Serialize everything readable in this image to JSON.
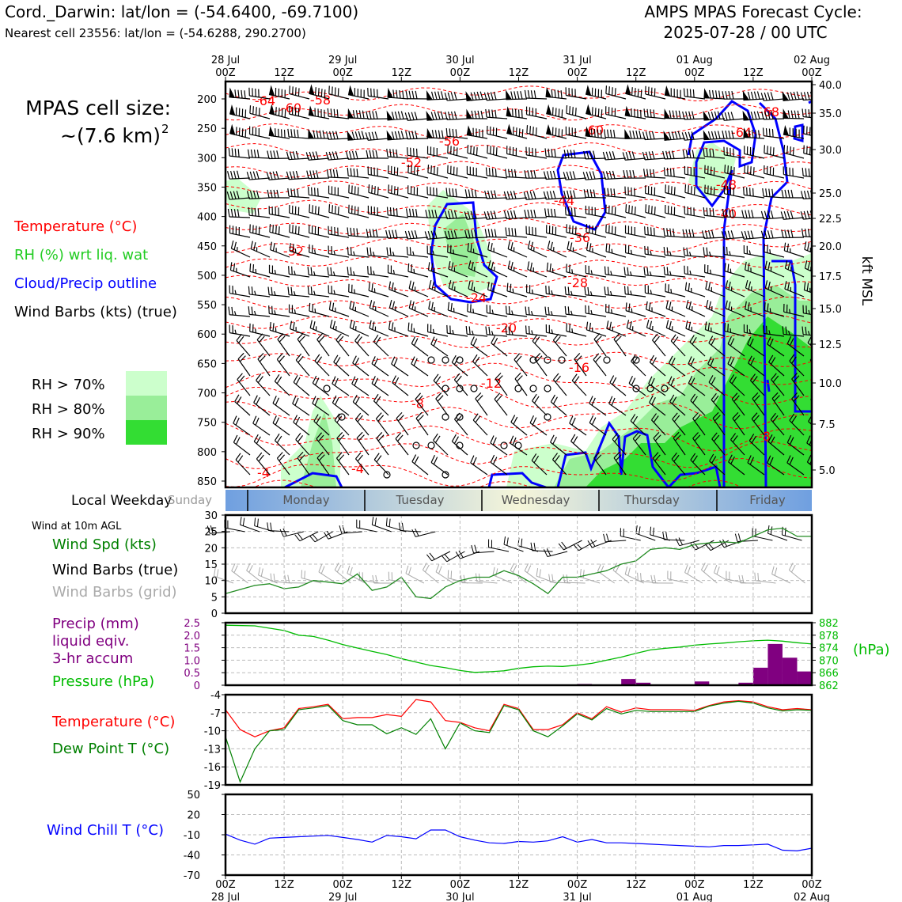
{
  "header": {
    "title_left": "Cord._Darwin: lat/lon = (-54.6400, -69.7100)",
    "subtitle_left": "Nearest cell 23556: lat/lon = (-54.6288, 290.2700)",
    "title_right_1": "AMPS MPAS Forecast Cycle:",
    "title_right_2": "2025-07-28 / 00 UTC"
  },
  "side": {
    "cell_size_1": "MPAS cell size:",
    "cell_size_2": "~(7.6 km)",
    "cell_size_sup": "2",
    "legend_temp": "Temperature (°C)",
    "legend_rh": "RH (%) wrt liq. wat",
    "legend_cloud": "Cloud/Precip outline",
    "legend_wind": "Wind Barbs (kts) (true)",
    "rh70": "RH > 70%",
    "rh80": "RH > 80%",
    "rh90": "RH > 90%",
    "weekday_label": "Local Weekday",
    "wind10m_label": "Wind at 10m AGL",
    "wspd_label": "Wind Spd (kts)",
    "wbarb_true_label": "Wind Barbs (true)",
    "wbarb_grid_label": "Wind Barbs (grid)",
    "precip_label_1": "Precip (mm)",
    "precip_label_2": "liquid eqiv.",
    "precip_label_3": "3-hr accum",
    "pressure_label": "Pressure (hPa)",
    "hpa_label": "(hPa)",
    "temp_label": "Temperature (°C)",
    "dew_label": "Dew Point T (°C)",
    "windchill_label": "Wind Chill T (°C)",
    "kft_label": "kft MSL"
  },
  "colors": {
    "temp": "#ff0000",
    "rh_text": "#22cc22",
    "cloud": "#0000ff",
    "rh70": "#ccffcc",
    "rh80": "#99ee99",
    "rh90": "#33dd33",
    "wind_speed": "#228b22",
    "precip": "#800080",
    "pressure": "#00bb00",
    "dewpoint": "#008000",
    "windchill": "#0000ff",
    "grid_barb": "#aaaaaa"
  },
  "chart_data": [
    {
      "type": "time-height",
      "name": "upper-air",
      "y_left_ticks": [
        200,
        250,
        300,
        350,
        400,
        450,
        500,
        550,
        600,
        650,
        700,
        750,
        800,
        850
      ],
      "y_right_ticks": [
        "40.0",
        "35.0",
        "30.0",
        "25.0",
        "22.5",
        "20.0",
        "17.5",
        "15.0",
        "12.5",
        "10.0",
        "7.5",
        "5.0"
      ],
      "top_x_ticks": [
        [
          "28 Jul",
          "00Z"
        ],
        [
          "",
          "12Z"
        ],
        [
          "29 Jul",
          "00Z"
        ],
        [
          "",
          "12Z"
        ],
        [
          "30 Jul",
          "00Z"
        ],
        [
          "",
          "12Z"
        ],
        [
          "31 Jul",
          "00Z"
        ],
        [
          "",
          "12Z"
        ],
        [
          "01 Aug",
          "00Z"
        ],
        [
          "",
          "12Z"
        ],
        [
          "02 Aug",
          "00Z"
        ]
      ],
      "temp_contour_labels": [
        "-64",
        "-60",
        "-58",
        "-56",
        "-52",
        "-60",
        "-68",
        "-64",
        "-48",
        "-40",
        "-44",
        "-36",
        "-32",
        "-28",
        "-24",
        "-20",
        "-16",
        "-12",
        "-8",
        "-4",
        "-4",
        "-8"
      ]
    },
    {
      "type": "bar",
      "name": "weekday",
      "categories": [
        "Sunday",
        "Monday",
        "Tuesday",
        "Wednesday",
        "Thursday",
        "Friday"
      ]
    },
    {
      "type": "line",
      "name": "wind-10m",
      "ylim": [
        0,
        30
      ],
      "yticks": [
        0,
        5,
        10,
        15,
        20,
        25,
        30
      ],
      "x_hours": [
        0,
        6,
        9,
        12,
        15,
        18,
        21,
        24,
        27,
        30,
        33,
        36,
        39,
        42,
        45,
        48,
        51,
        54,
        57,
        60,
        63,
        66,
        69,
        72,
        75,
        78,
        81,
        84,
        87,
        90,
        93,
        96,
        99,
        102,
        105,
        108,
        111,
        114,
        117,
        120
      ],
      "values": [
        6,
        8.5,
        9,
        7.5,
        8,
        10,
        9.5,
        9,
        12,
        7,
        8,
        11,
        5,
        4.5,
        8,
        10,
        11,
        11,
        13,
        11.5,
        9,
        6,
        11,
        11,
        12,
        13,
        15,
        16,
        19.5,
        20,
        19.5,
        21,
        21.5,
        21.8,
        21.5,
        23.5,
        25.5,
        26,
        23.5,
        23.5
      ]
    },
    {
      "type": "bar+line",
      "name": "precip-pressure",
      "precip_ylim": [
        0,
        2.5
      ],
      "precip_yticks": [
        "0",
        "0.5",
        "1.0",
        "1.5",
        "2.0",
        "2.5"
      ],
      "pressure_ylim": [
        862,
        882
      ],
      "pressure_yticks": [
        862,
        866,
        870,
        874,
        878,
        882
      ],
      "precip_x_start_hours": [
        72,
        81,
        84,
        96,
        105,
        108,
        111,
        114,
        117
      ],
      "precip_values": [
        0.05,
        0.25,
        0.1,
        0.15,
        0.1,
        0.7,
        1.65,
        1.1,
        0.55
      ],
      "pressure_x_hours": [
        0,
        6,
        12,
        15,
        18,
        21,
        24,
        27,
        30,
        33,
        36,
        39,
        42,
        45,
        48,
        51,
        54,
        57,
        60,
        63,
        66,
        69,
        72,
        75,
        78,
        81,
        84,
        87,
        90,
        93,
        96,
        99,
        102,
        105,
        108,
        111,
        114,
        117,
        120
      ],
      "pressure_values": [
        881.2,
        881,
        879.5,
        878,
        877.6,
        876.4,
        875,
        873.9,
        872.8,
        871.8,
        870.5,
        869.4,
        868.3,
        867.6,
        866.7,
        866.1,
        866.3,
        866.6,
        867.4,
        867.9,
        868.1,
        868,
        868.4,
        869,
        870,
        871,
        872.2,
        873.3,
        873.8,
        874.2,
        874.8,
        875.2,
        875.5,
        875.9,
        876.2,
        876.4,
        876.1,
        875.6,
        875.2
      ]
    },
    {
      "type": "line",
      "name": "temp-dewpoint",
      "ylim": [
        -19,
        -4
      ],
      "yticks": [
        -4,
        -7,
        -10,
        -13,
        -16,
        -19
      ],
      "x_hours": [
        0,
        3,
        6,
        9,
        12,
        15,
        18,
        21,
        24,
        27,
        30,
        33,
        36,
        39,
        42,
        45,
        48,
        51,
        54,
        57,
        60,
        63,
        66,
        69,
        72,
        75,
        78,
        81,
        84,
        87,
        90,
        93,
        96,
        99,
        102,
        105,
        108,
        111,
        114,
        117,
        120
      ],
      "series": [
        {
          "name": "Temperature (°C)",
          "values": [
            -6.5,
            -9.8,
            -11,
            -10,
            -9.5,
            -6.3,
            -6,
            -5.6,
            -8,
            -7.8,
            -7.8,
            -7.3,
            -7.6,
            -4.8,
            -5.2,
            -8.3,
            -8.6,
            -9.5,
            -10,
            -5.6,
            -6.3,
            -9.8,
            -9.8,
            -9,
            -7,
            -8,
            -6,
            -6.9,
            -6.2,
            -6.5,
            -6.5,
            -6.5,
            -6.6,
            -5.8,
            -5.2,
            -5,
            -5.2,
            -6,
            -6.5,
            -6.3,
            -6.5
          ]
        },
        {
          "name": "Dew Point T (°C)",
          "values": [
            -11,
            -18.5,
            -13,
            -10,
            -9.8,
            -6.5,
            -6.2,
            -5.8,
            -8.3,
            -9,
            -9,
            -10.5,
            -9.5,
            -10.6,
            -8,
            -13,
            -8.7,
            -10,
            -10.3,
            -5.8,
            -6.5,
            -10,
            -11,
            -9.2,
            -7.2,
            -8.2,
            -6.3,
            -7.2,
            -6.6,
            -6.8,
            -6.8,
            -6.8,
            -6.8,
            -5.9,
            -5.4,
            -5.1,
            -5.4,
            -6.2,
            -6.7,
            -6.5,
            -6.6
          ]
        }
      ]
    },
    {
      "type": "line",
      "name": "wind-chill",
      "ylim": [
        -70,
        50
      ],
      "yticks": [
        50,
        20,
        -10,
        -40,
        -70
      ],
      "x_hours": [
        0,
        3,
        6,
        9,
        12,
        15,
        18,
        21,
        24,
        27,
        30,
        33,
        36,
        39,
        42,
        45,
        48,
        51,
        54,
        57,
        60,
        63,
        66,
        69,
        72,
        75,
        78,
        81,
        84,
        87,
        90,
        93,
        96,
        99,
        102,
        105,
        108,
        111,
        114,
        117,
        120
      ],
      "values": [
        -9,
        -18,
        -24,
        -15,
        -14,
        -13,
        -12,
        -11,
        -14,
        -17,
        -21,
        -11,
        -13,
        -16,
        -3,
        -3,
        -13,
        -18,
        -22,
        -23,
        -20,
        -21,
        -19,
        -13,
        -21,
        -17,
        -22,
        -22,
        -23,
        -24,
        -25,
        -26,
        -27,
        -28,
        -26,
        -26,
        -25,
        -24,
        -33,
        -34,
        -30
      ]
    }
  ],
  "bottom_x_ticks": [
    [
      "00Z",
      "28 Jul"
    ],
    [
      "12Z",
      ""
    ],
    [
      "00Z",
      "29 Jul"
    ],
    [
      "12Z",
      ""
    ],
    [
      "00Z",
      "30 Jul"
    ],
    [
      "12Z",
      ""
    ],
    [
      "00Z",
      "31 Jul"
    ],
    [
      "12Z",
      ""
    ],
    [
      "00Z",
      "01 Aug"
    ],
    [
      "12Z",
      ""
    ],
    [
      "00Z",
      "02 Aug"
    ]
  ]
}
